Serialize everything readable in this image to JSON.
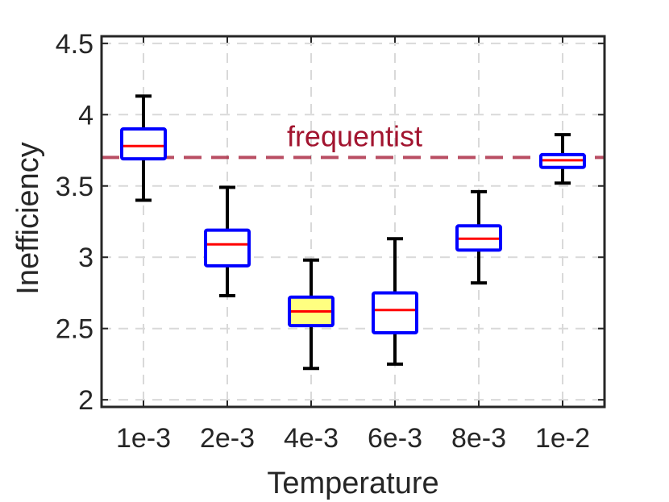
{
  "chart_data": {
    "type": "box",
    "title": "",
    "xlabel": "Temperature",
    "ylabel": "Inefficiency",
    "ylim": [
      1.95,
      4.55
    ],
    "yticks": [
      2,
      2.5,
      3,
      3.5,
      4,
      4.5
    ],
    "ytick_labels": [
      "2",
      "2.5",
      "3",
      "3.5",
      "4",
      "4.5"
    ],
    "categories": [
      "1e-3",
      "2e-3",
      "4e-3",
      "6e-3",
      "8e-3",
      "1e-2"
    ],
    "boxes": [
      {
        "category": "1e-3",
        "whisker_low": 3.4,
        "q1": 3.69,
        "median": 3.78,
        "q3": 3.9,
        "whisker_high": 4.13
      },
      {
        "category": "2e-3",
        "whisker_low": 2.73,
        "q1": 2.94,
        "median": 3.09,
        "q3": 3.19,
        "whisker_high": 3.49
      },
      {
        "category": "4e-3",
        "whisker_low": 2.22,
        "q1": 2.52,
        "median": 2.62,
        "q3": 2.72,
        "whisker_high": 2.98
      },
      {
        "category": "6e-3",
        "whisker_low": 2.25,
        "q1": 2.47,
        "median": 2.63,
        "q3": 2.75,
        "whisker_high": 3.13
      },
      {
        "category": "8e-3",
        "whisker_low": 2.82,
        "q1": 3.05,
        "median": 3.13,
        "q3": 3.22,
        "whisker_high": 3.46
      },
      {
        "category": "1e-2",
        "whisker_low": 3.52,
        "q1": 3.63,
        "median": 3.68,
        "q3": 3.72,
        "whisker_high": 3.86
      }
    ],
    "highlighted_category": "4e-3",
    "reference_line": {
      "label": "frequentist",
      "value": 3.7,
      "style": "dashed"
    },
    "grid": true,
    "colors": {
      "box_edge": "#0000ff",
      "median": "#ff0000",
      "whisker": "#000000",
      "highlight_fill": "#ffff80",
      "reference": "#a2142f",
      "grid": "#d9d9d9",
      "axes": "#262626"
    }
  }
}
